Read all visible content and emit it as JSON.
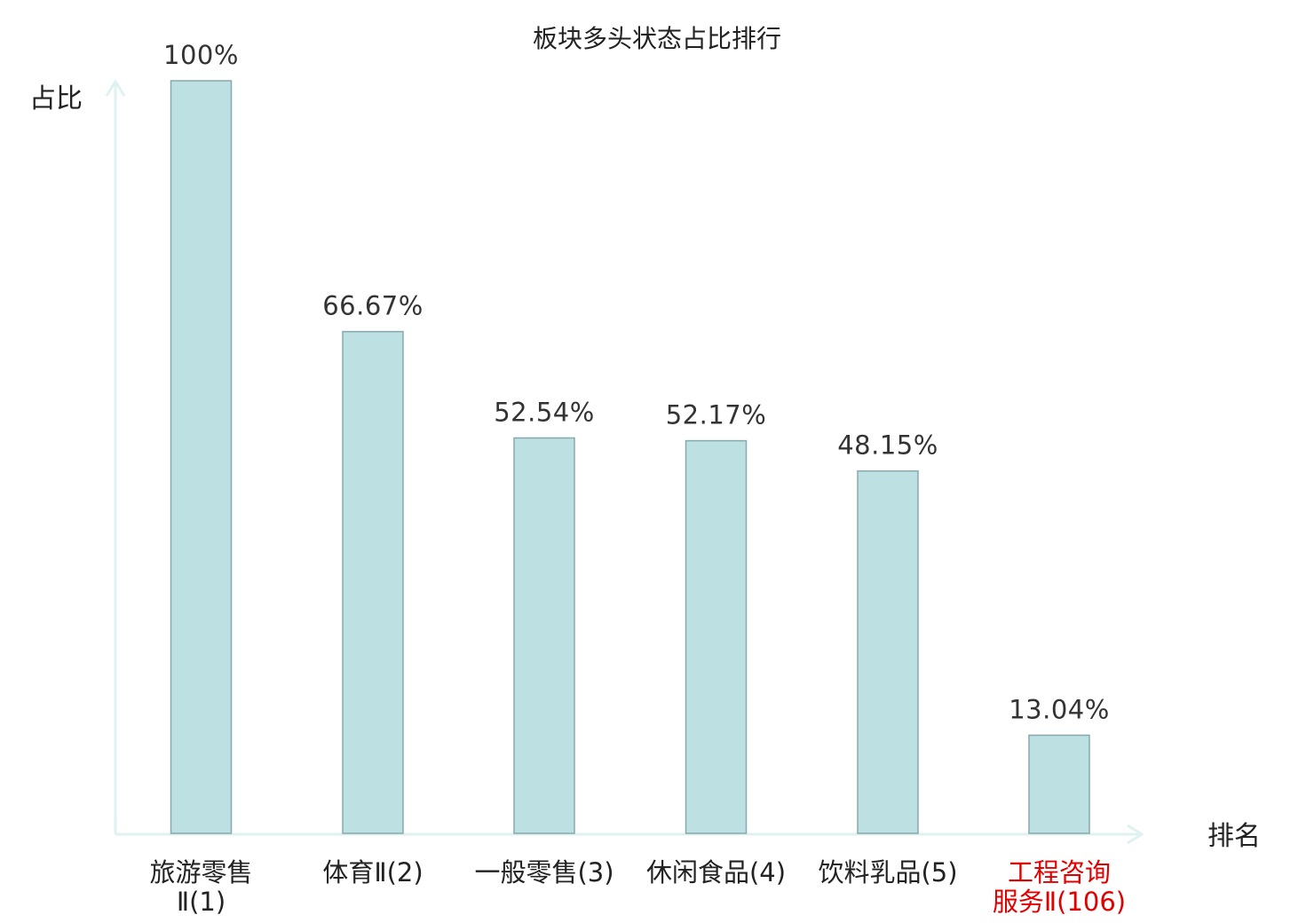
{
  "chart_data": {
    "type": "bar",
    "title": "板块多头状态占比排行",
    "ylabel": "占比",
    "xlabel": "排名",
    "ylim": [
      0,
      100
    ],
    "categories": [
      [
        "旅游零售",
        "Ⅱ(1)"
      ],
      [
        "体育Ⅱ(2)"
      ],
      [
        "一般零售(3)"
      ],
      [
        "休闲食品(4)"
      ],
      [
        "饮料乳品(5)"
      ],
      [
        "工程咨询",
        "服务Ⅱ(106)"
      ]
    ],
    "values": [
      100,
      66.67,
      52.54,
      52.17,
      48.15,
      13.04
    ],
    "value_labels": [
      "100%",
      "66.67%",
      "52.54%",
      "52.17%",
      "48.15%",
      "13.04%"
    ],
    "highlight_index": 5,
    "grid": false,
    "legend": "none",
    "colors": {
      "bar_fill": "#bde0e3",
      "bar_stroke": "#86a9ad",
      "axis": "#dff2ef",
      "highlight_text": "#e00000",
      "text": "#222222"
    }
  }
}
